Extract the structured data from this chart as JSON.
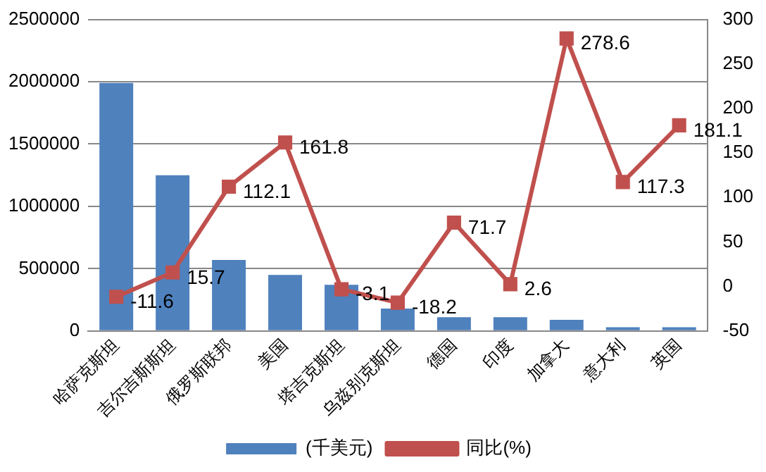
{
  "chart_data": {
    "type": "bar",
    "categories": [
      "哈萨克斯坦",
      "吉尔吉斯斯坦",
      "俄罗斯联邦",
      "美国",
      "塔吉克斯坦",
      "乌兹别克斯坦",
      "德国",
      "印度",
      "加拿大",
      "意大利",
      "英国"
    ],
    "series": [
      {
        "name": "(千美元)",
        "color": "#4f81bd",
        "values": [
          1990000,
          1250000,
          570000,
          450000,
          370000,
          180000,
          110000,
          110000,
          90000,
          30000,
          30000
        ]
      },
      {
        "name": "同比(%)",
        "type": "line",
        "axis": "y2",
        "color": "#c0504d",
        "marker": "square",
        "data_labels": true,
        "values": [
          -11.6,
          15.7,
          112.1,
          161.8,
          -3.1,
          -18.2,
          71.7,
          2.6,
          278.6,
          117.3,
          181.1
        ]
      }
    ],
    "ylim": [
      0,
      2500000
    ],
    "yticks": [
      0,
      500000,
      1000000,
      1500000,
      2000000,
      2500000
    ],
    "y2lim": [
      -50,
      300
    ],
    "y2ticks": [
      -50,
      0,
      50,
      100,
      150,
      200,
      250,
      300
    ],
    "grid": "y",
    "legend": "bottom"
  }
}
